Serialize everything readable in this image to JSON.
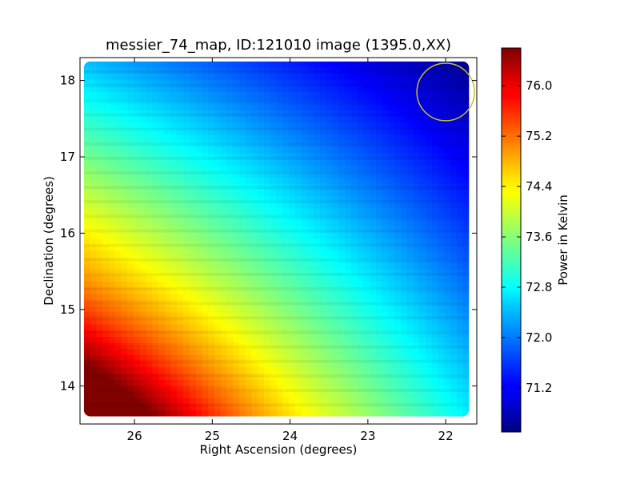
{
  "chart_data": {
    "type": "heatmap",
    "title": "messier_74_map, ID:121010 image (1395.0,XX)",
    "xlabel": "Right Ascension (degrees)",
    "ylabel": "Declination (degrees)",
    "xlim": [
      26.7,
      21.6
    ],
    "ylim": [
      13.5,
      18.3
    ],
    "x_ticks": [
      26,
      25,
      24,
      23,
      22
    ],
    "y_ticks": [
      14,
      15,
      16,
      17,
      18
    ],
    "x_tick_labels": [
      "26",
      "25",
      "24",
      "23",
      "22"
    ],
    "y_tick_labels": [
      "14",
      "15",
      "16",
      "17",
      "18"
    ],
    "colorbar": {
      "label": "Power in Kelvin",
      "range": [
        70.5,
        76.6
      ],
      "ticks": [
        76.0,
        75.2,
        74.4,
        73.6,
        72.8,
        72.0,
        71.2
      ],
      "tick_labels": [
        "76.0",
        "75.2",
        "74.4",
        "73.6",
        "72.8",
        "72.0",
        "71.2"
      ],
      "colormap": "jet"
    },
    "grid": false,
    "data_extent": {
      "ra": [
        26.65,
        21.7
      ],
      "dec": [
        13.6,
        18.25
      ]
    },
    "corner_values_kelvin": {
      "ra_max_dec_min": 76.5,
      "ra_max_dec_max": 72.4,
      "ra_min_dec_min": 72.7,
      "ra_min_dec_max": 70.6
    },
    "marker": {
      "type": "circle",
      "ra": 22.0,
      "dec": 17.85,
      "radius_deg": 0.37,
      "color": "#c8c020"
    }
  }
}
